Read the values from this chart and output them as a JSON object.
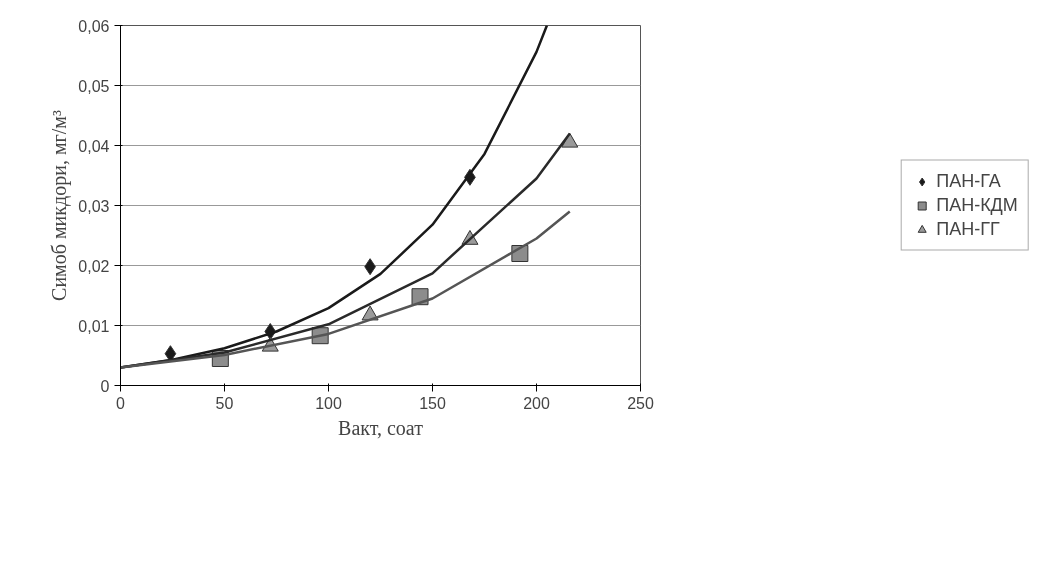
{
  "chart_data": {
    "type": "scatter",
    "xlabel": "Вакт, соат",
    "ylabel": "Симоб микдори, мг/м³",
    "xlim": [
      0,
      250
    ],
    "xticks": [
      0,
      50,
      100,
      150,
      200,
      250
    ],
    "ylim": [
      0,
      0.06
    ],
    "yticks": [
      {
        "value": 0,
        "label": "0"
      },
      {
        "value": 0.01,
        "label": "0,01"
      },
      {
        "value": 0.02,
        "label": "0,02"
      },
      {
        "value": 0.03,
        "label": "0,03"
      },
      {
        "value": 0.04,
        "label": "0,04"
      },
      {
        "value": 0.05,
        "label": "0,05"
      },
      {
        "value": 0.06,
        "label": "0,06"
      }
    ],
    "grid": "y",
    "legend": "right",
    "series": [
      {
        "name": "ПАН-ГА",
        "marker": "diamond",
        "color": "#1a1a1a",
        "x": [
          24,
          72,
          120,
          168
        ],
        "values": [
          0.0053,
          0.009,
          0.0198,
          0.0347
        ]
      },
      {
        "name": "ПАН-КДМ",
        "marker": "square",
        "color": "#8c8c8c",
        "x": [
          48,
          96,
          144,
          192
        ],
        "values": [
          0.0045,
          0.0083,
          0.0148,
          0.022
        ]
      },
      {
        "name": "ПАН-ГГ",
        "marker": "triangle",
        "color": "#9a9a9a",
        "x": [
          72,
          120,
          168,
          216
        ],
        "values": [
          0.0065,
          0.0117,
          0.0243,
          0.0405
        ]
      },
      {
        "type": "line",
        "color": "#1a1a1a",
        "x": [
          0,
          25,
          50,
          75,
          100,
          125,
          150,
          175,
          200,
          205
        ],
        "values": [
          0.003,
          0.0043,
          0.0062,
          0.009,
          0.0129,
          0.0186,
          0.0268,
          0.0386,
          0.0556,
          0.06
        ]
      },
      {
        "type": "line",
        "color": "#2a2a2a",
        "x": [
          0,
          50,
          100,
          150,
          200,
          216
        ],
        "values": [
          0.003,
          0.0055,
          0.0102,
          0.0187,
          0.0345,
          0.042
        ]
      },
      {
        "type": "line",
        "color": "#555555",
        "x": [
          0,
          50,
          100,
          150,
          200,
          216
        ],
        "values": [
          0.003,
          0.0051,
          0.0086,
          0.0145,
          0.0245,
          0.029
        ]
      }
    ]
  }
}
